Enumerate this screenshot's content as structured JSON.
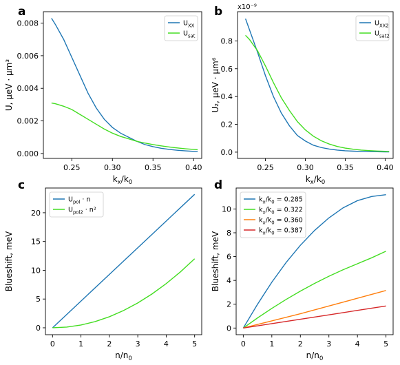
{
  "chart_data": [
    {
      "panel": "a",
      "type": "line",
      "xlabel_main": "k",
      "xlabel_sub1": "x",
      "xlabel_mid": "/k",
      "xlabel_sub2": "0",
      "ylabel": "U, μeV · μm³",
      "xlim": [
        0.215,
        0.41
      ],
      "ylim": [
        -0.0003,
        0.0087
      ],
      "xticks": [
        0.25,
        0.3,
        0.35,
        0.4
      ],
      "xtick_labels": [
        "0.25",
        "0.30",
        "0.35",
        "0.40"
      ],
      "yticks": [
        0.0,
        0.002,
        0.004,
        0.006,
        0.008
      ],
      "ytick_labels": [
        "0.000",
        "0.002",
        "0.004",
        "0.006",
        "0.008"
      ],
      "legend_position": "top-right",
      "series": [
        {
          "name": "U",
          "name_sub": "XX",
          "color": "#1f77b4",
          "x": [
            0.225,
            0.23,
            0.24,
            0.25,
            0.26,
            0.27,
            0.28,
            0.29,
            0.3,
            0.31,
            0.32,
            0.33,
            0.34,
            0.35,
            0.36,
            0.37,
            0.38,
            0.39,
            0.4,
            0.405
          ],
          "y": [
            0.0083,
            0.0079,
            0.007,
            0.0059,
            0.0048,
            0.0037,
            0.0028,
            0.0021,
            0.0016,
            0.00125,
            0.001,
            0.00075,
            0.00055,
            0.00042,
            0.00032,
            0.00025,
            0.0002,
            0.00016,
            0.00013,
            0.00012
          ]
        },
        {
          "name": "U",
          "name_sub": "sat",
          "color": "#44dd22",
          "x": [
            0.225,
            0.23,
            0.24,
            0.25,
            0.26,
            0.27,
            0.28,
            0.29,
            0.3,
            0.31,
            0.32,
            0.33,
            0.34,
            0.35,
            0.36,
            0.37,
            0.38,
            0.39,
            0.4,
            0.405
          ],
          "y": [
            0.0031,
            0.00305,
            0.0029,
            0.0027,
            0.0024,
            0.0021,
            0.0018,
            0.0015,
            0.00125,
            0.00105,
            0.0009,
            0.00075,
            0.00064,
            0.00055,
            0.00047,
            0.0004,
            0.00034,
            0.00029,
            0.00025,
            0.00023
          ]
        }
      ]
    },
    {
      "panel": "b",
      "type": "line",
      "xlabel_main": "k",
      "xlabel_sub1": "x",
      "xlabel_mid": "/k",
      "xlabel_sub2": "0",
      "ylabel": "U₂, μeV · μm⁶",
      "offset_label": "x10⁻⁹",
      "xlim": [
        0.215,
        0.41
      ],
      "ylim": [
        -0.045,
        1.01
      ],
      "xticks": [
        0.25,
        0.3,
        0.35,
        0.4
      ],
      "xtick_labels": [
        "0.25",
        "0.30",
        "0.35",
        "0.40"
      ],
      "yticks": [
        0.0,
        0.2,
        0.4,
        0.6,
        0.8
      ],
      "ytick_labels": [
        "0.0",
        "0.2",
        "0.4",
        "0.6",
        "0.8"
      ],
      "legend_position": "top-right",
      "series": [
        {
          "name": "U",
          "name_sub": "XX2",
          "color": "#1f77b4",
          "x": [
            0.225,
            0.23,
            0.24,
            0.25,
            0.26,
            0.27,
            0.28,
            0.29,
            0.3,
            0.31,
            0.32,
            0.33,
            0.34,
            0.35,
            0.36,
            0.37,
            0.38,
            0.39,
            0.4,
            0.405
          ],
          "y": [
            0.96,
            0.88,
            0.72,
            0.55,
            0.4,
            0.28,
            0.19,
            0.12,
            0.08,
            0.05,
            0.033,
            0.022,
            0.015,
            0.01,
            0.007,
            0.005,
            0.004,
            0.003,
            0.002,
            0.002
          ]
        },
        {
          "name": "U",
          "name_sub": "sat2",
          "color": "#44dd22",
          "x": [
            0.225,
            0.23,
            0.24,
            0.25,
            0.26,
            0.27,
            0.28,
            0.29,
            0.3,
            0.31,
            0.32,
            0.33,
            0.34,
            0.35,
            0.36,
            0.37,
            0.38,
            0.39,
            0.4,
            0.405
          ],
          "y": [
            0.84,
            0.81,
            0.73,
            0.62,
            0.5,
            0.39,
            0.3,
            0.22,
            0.16,
            0.115,
            0.082,
            0.058,
            0.041,
            0.029,
            0.021,
            0.015,
            0.011,
            0.008,
            0.006,
            0.005
          ]
        }
      ]
    },
    {
      "panel": "c",
      "type": "line",
      "xlabel_main": "n/n",
      "xlabel_sub1": "0",
      "xlabel_mid": "",
      "xlabel_sub2": "",
      "ylabel": "Blueshift, meV",
      "xlim": [
        -0.25,
        5.25
      ],
      "ylim": [
        -1.2,
        24.3
      ],
      "xticks": [
        0,
        1,
        2,
        3,
        4,
        5
      ],
      "xtick_labels": [
        "0",
        "1",
        "2",
        "3",
        "4",
        "5"
      ],
      "yticks": [
        0,
        5,
        10,
        15,
        20
      ],
      "ytick_labels": [
        "0",
        "5",
        "10",
        "15",
        "20"
      ],
      "legend_position": "top-left",
      "series": [
        {
          "name": "U",
          "name_sub": "pol",
          "name_tail": " · n",
          "color": "#1f77b4",
          "x": [
            0,
            1,
            2,
            3,
            4,
            5
          ],
          "y": [
            0,
            4.64,
            9.28,
            13.92,
            18.56,
            23.2
          ]
        },
        {
          "name": "U",
          "name_sub": "pol2",
          "name_tail": " · n²",
          "color": "#44dd22",
          "x": [
            0,
            0.5,
            1,
            1.5,
            2,
            2.5,
            3,
            3.5,
            4,
            4.5,
            5
          ],
          "y": [
            0,
            0.12,
            0.48,
            1.08,
            1.92,
            3.0,
            4.32,
            5.88,
            7.68,
            9.72,
            12.0
          ]
        }
      ]
    },
    {
      "panel": "d",
      "type": "line",
      "xlabel_main": "n/n",
      "xlabel_sub1": "0",
      "xlabel_mid": "",
      "xlabel_sub2": "",
      "ylabel": "Blueshift, meV",
      "xlim": [
        -0.25,
        5.25
      ],
      "ylim": [
        -0.56,
        11.76
      ],
      "xticks": [
        0,
        1,
        2,
        3,
        4,
        5
      ],
      "xtick_labels": [
        "0",
        "1",
        "2",
        "3",
        "4",
        "5"
      ],
      "yticks": [
        0,
        2,
        4,
        6,
        8,
        10
      ],
      "ytick_labels": [
        "0",
        "2",
        "4",
        "6",
        "8",
        "10"
      ],
      "legend_position": "top-left",
      "series": [
        {
          "name": "k",
          "name_sub": "x",
          "name_mid": "/k",
          "name_sub2": "0",
          "name_tail": " = 0.285",
          "color": "#1f77b4",
          "x": [
            0,
            0.5,
            1,
            1.5,
            2,
            2.5,
            3,
            3.5,
            4,
            4.5,
            5
          ],
          "y": [
            0,
            2.0,
            3.85,
            5.5,
            6.95,
            8.2,
            9.25,
            10.1,
            10.7,
            11.05,
            11.2
          ]
        },
        {
          "name": "k",
          "name_sub": "x",
          "name_mid": "/k",
          "name_sub2": "0",
          "name_tail": " = 0.322",
          "color": "#44dd22",
          "x": [
            0,
            0.5,
            1,
            1.5,
            2,
            2.5,
            3,
            3.5,
            4,
            4.5,
            5
          ],
          "y": [
            0,
            0.85,
            1.65,
            2.4,
            3.1,
            3.75,
            4.35,
            4.9,
            5.4,
            5.9,
            6.45
          ]
        },
        {
          "name": "k",
          "name_sub": "x",
          "name_mid": "/k",
          "name_sub2": "0",
          "name_tail": " = 0.360",
          "color": "#ff7f0e",
          "x": [
            0,
            1,
            2,
            3,
            4,
            5
          ],
          "y": [
            0,
            0.6,
            1.2,
            1.85,
            2.5,
            3.15
          ]
        },
        {
          "name": "k",
          "name_sub": "x",
          "name_mid": "/k",
          "name_sub2": "0",
          "name_tail": " = 0.387",
          "color": "#d62728",
          "x": [
            0,
            1,
            2,
            3,
            4,
            5
          ],
          "y": [
            0,
            0.37,
            0.74,
            1.11,
            1.48,
            1.85
          ]
        }
      ]
    }
  ]
}
